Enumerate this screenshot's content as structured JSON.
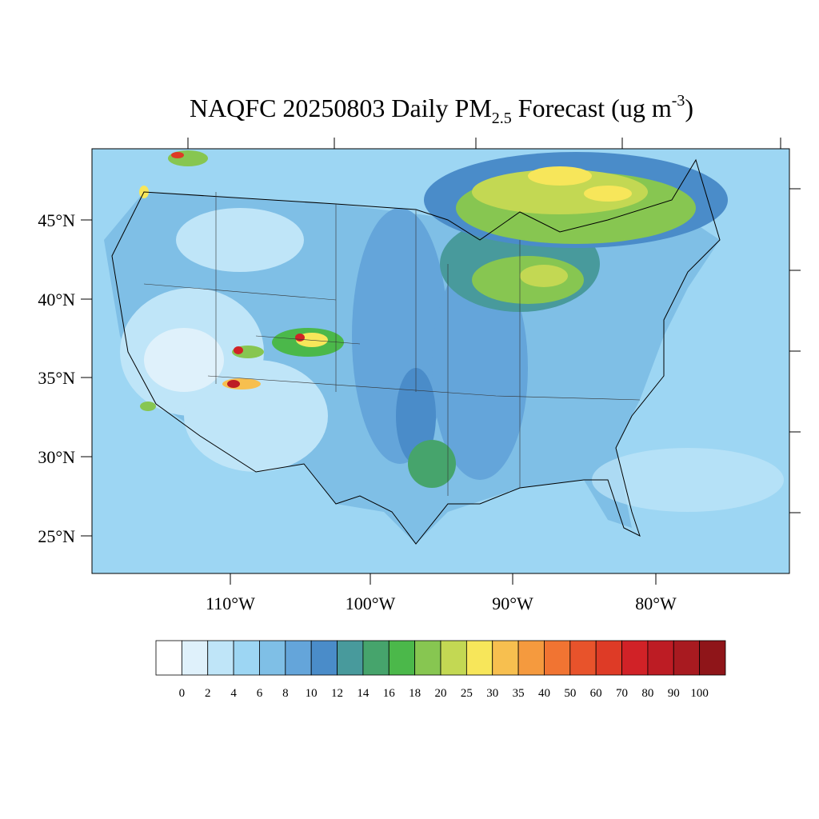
{
  "map": {
    "title": {
      "main": "NAQFC 20250803 Daily PM",
      "subscript": "2.5",
      "middle": " Forecast (ug m",
      "superscript": "-3",
      "end": ")"
    },
    "lat_labels": [
      "45°N",
      "40°N",
      "35°N",
      "30°N",
      "25°N"
    ],
    "lon_labels": [
      "110°W",
      "100°W",
      "90°W",
      "80°W"
    ],
    "colorbar": {
      "labels": [
        0,
        2,
        4,
        6,
        8,
        10,
        12,
        14,
        16,
        18,
        20,
        25,
        30,
        35,
        40,
        50,
        60,
        70,
        80,
        90,
        100
      ],
      "colors": [
        "#ffffff",
        "#dff1fb",
        "#bfe5f8",
        "#9dd6f3",
        "#7fbfe6",
        "#64a5da",
        "#4a8cc9",
        "#489a9c",
        "#46a46c",
        "#4bb84a",
        "#87c651",
        "#c3d853",
        "#f7e65a",
        "#f7bf4f",
        "#f59a3e",
        "#f17432",
        "#e8532b",
        "#de3b26",
        "#d12227",
        "#bd1c24",
        "#a81a20",
        "#8f1519"
      ]
    }
  }
}
